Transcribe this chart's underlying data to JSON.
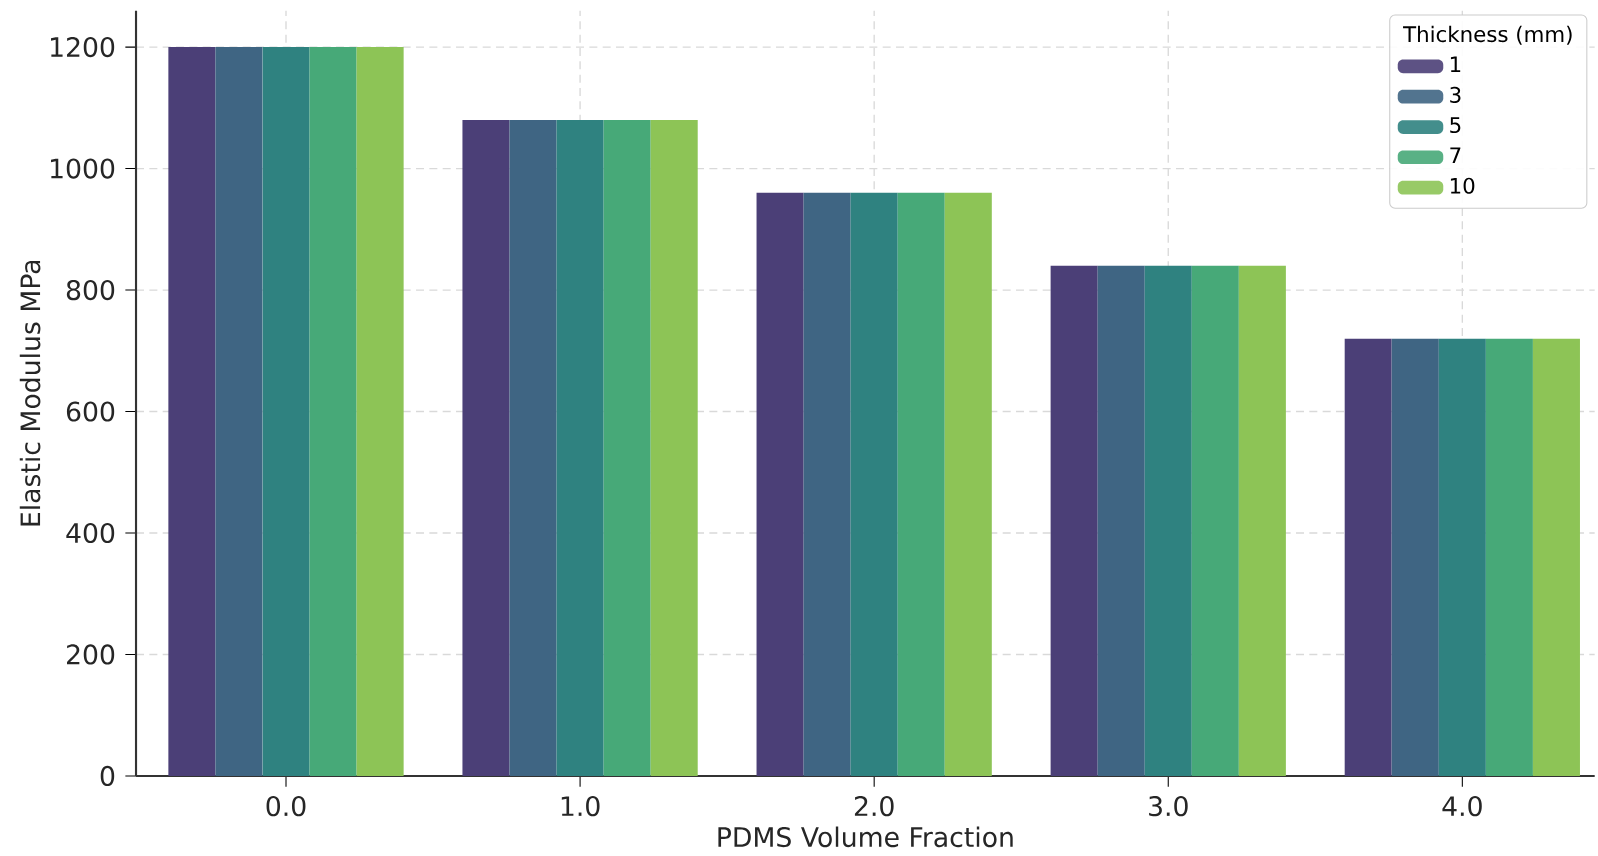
{
  "chart_data": {
    "type": "bar",
    "xlabel": "PDMS Volume Fraction",
    "ylabel": "Elastic Modulus MPa",
    "legend_title": "Thickness (mm)",
    "categories": [
      "0.0",
      "1.0",
      "2.0",
      "3.0",
      "4.0"
    ],
    "series": [
      {
        "name": "1",
        "color": "#4b3f77",
        "values": [
          1200,
          1080,
          960,
          840,
          720
        ]
      },
      {
        "name": "3",
        "color": "#3f6583",
        "values": [
          1200,
          1080,
          960,
          840,
          720
        ]
      },
      {
        "name": "5",
        "color": "#2f8280",
        "values": [
          1200,
          1080,
          960,
          840,
          720
        ]
      },
      {
        "name": "7",
        "color": "#47a978",
        "values": [
          1200,
          1080,
          960,
          840,
          720
        ]
      },
      {
        "name": "10",
        "color": "#8dc456",
        "values": [
          1200,
          1080,
          960,
          840,
          720
        ]
      }
    ],
    "ylim": [
      0,
      1260
    ],
    "yticks": [
      0,
      200,
      400,
      600,
      800,
      1000,
      1200
    ],
    "grid": true,
    "legend": "top right"
  }
}
